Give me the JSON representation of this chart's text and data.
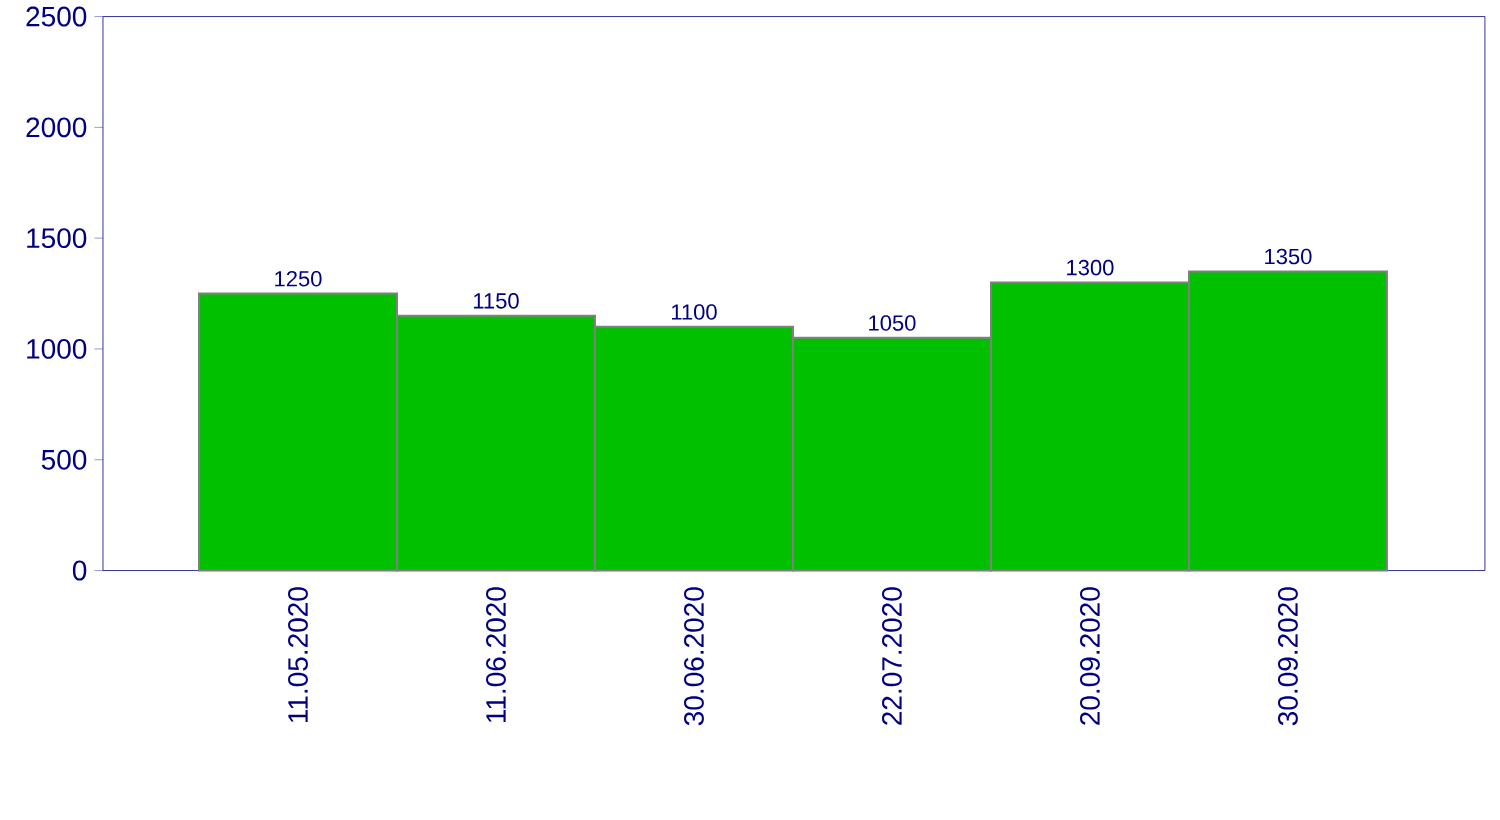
{
  "chart_data": {
    "type": "bar",
    "categories": [
      "11.05.2020",
      "11.06.2020",
      "30.06.2020",
      "22.07.2020",
      "20.09.2020",
      "30.09.2020"
    ],
    "values": [
      1250,
      1150,
      1100,
      1050,
      1300,
      1350
    ],
    "color": "#00c000",
    "ylim": [
      0,
      2500
    ],
    "yticks": [
      0,
      500,
      1000,
      1500,
      2000,
      2500
    ],
    "grid": false,
    "data_labels": true
  }
}
